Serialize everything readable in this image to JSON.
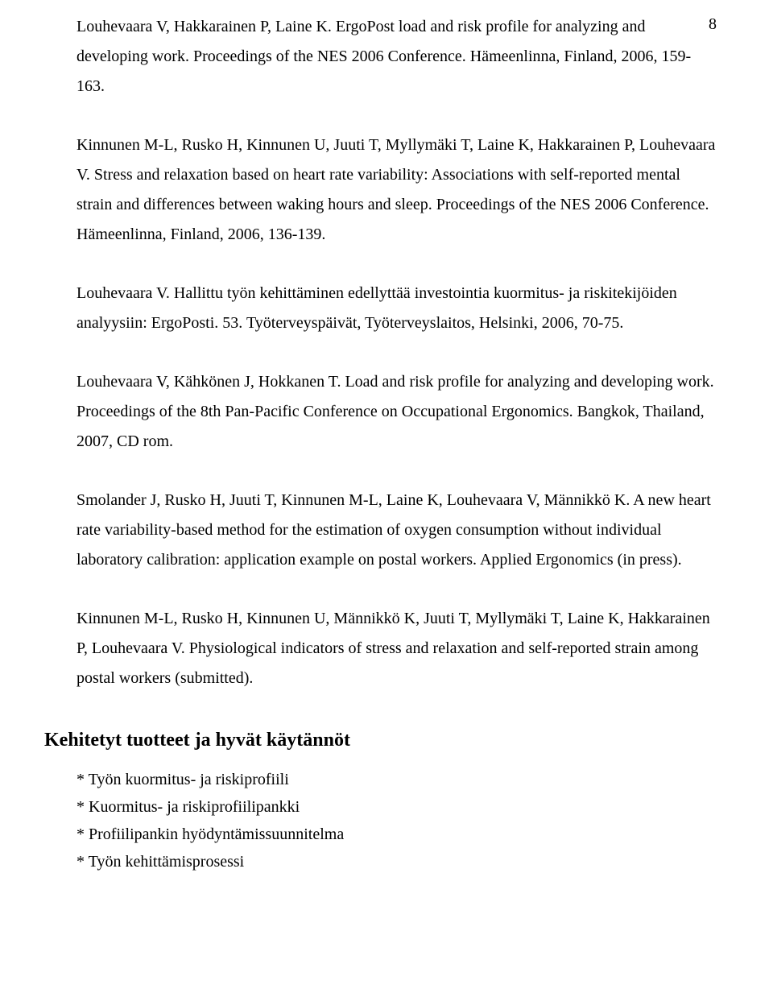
{
  "page_number": "8",
  "paragraphs": {
    "p1": "Louhevaara V, Hakkarainen P, Laine K. ErgoPost load and risk profile for analyzing and developing work. Proceedings of the NES 2006 Conference. Hämeenlinna, Finland, 2006, 159-163.",
    "p2": "Kinnunen M-L, Rusko H, Kinnunen U, Juuti T, Myllymäki T, Laine K, Hakkarainen P, Louhevaara V. Stress and relaxation based on heart rate variability: Associations with self-reported mental strain and differences between waking hours and sleep. Proceedings of the NES 2006 Conference. Hämeenlinna, Finland, 2006, 136-139.",
    "p3": "Louhevaara V. Hallittu työn kehittäminen edellyttää investointia kuormitus- ja riskitekijöiden analyysiin: ErgoPosti. 53. Työterveyspäivät, Työterveyslaitos, Helsinki, 2006, 70-75.",
    "p4": "Louhevaara V, Kähkönen J, Hokkanen T. Load and risk profile for analyzing and developing work. Proceedings of the 8th Pan-Pacific Conference on Occupational Ergonomics. Bangkok, Thailand, 2007, CD rom.",
    "p5": "Smolander J, Rusko H, Juuti T, Kinnunen M-L, Laine K, Louhevaara V, Männikkö K. A new heart rate variability-based method for the estimation of oxygen consumption without individual laboratory calibration: application example on postal workers. Applied Ergonomics (in press).",
    "p6": "Kinnunen M-L, Rusko H, Kinnunen U, Männikkö K, Juuti T, Myllymäki T, Laine K, Hakkarainen P, Louhevaara V. Physiological indicators of stress and relaxation and self-reported strain among postal workers (submitted)."
  },
  "heading": "Kehitetyt tuotteet ja hyvät käytännöt",
  "list_items": {
    "i1": "* Työn kuormitus- ja riskiprofiili",
    "i2": "* Kuormitus- ja riskiprofiilipankki",
    "i3": "* Profiilipankin hyödyntämissuunnitelma",
    "i4": "* Työn kehittämisprosessi"
  }
}
